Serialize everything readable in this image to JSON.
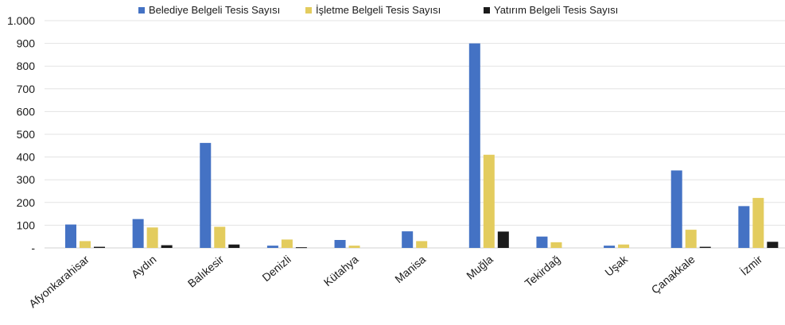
{
  "chart_data": {
    "type": "bar",
    "categories": [
      "Afyonkarahisar",
      "Aydın",
      "Balıkesir",
      "Denizli",
      "Kütahya",
      "Manisa",
      "Muğla",
      "Tekirdağ",
      "Uşak",
      "Çanakkale",
      "İzmir"
    ],
    "series": [
      {
        "name": "Belediye Belgeli Tesis Sayısı",
        "color": "#4472c4",
        "values": [
          103,
          127,
          462,
          10,
          35,
          73,
          900,
          50,
          10,
          341,
          184
        ]
      },
      {
        "name": "İşletme Belgeli Tesis Sayısı",
        "color": "#e3cc5e",
        "values": [
          30,
          90,
          93,
          37,
          10,
          30,
          410,
          25,
          15,
          80,
          220
        ]
      },
      {
        "name": "Yatırım Belgeli Tesis Sayısı",
        "color": "#1b1b1b",
        "values": [
          5,
          12,
          15,
          3,
          0,
          0,
          72,
          0,
          0,
          5,
          27
        ]
      }
    ],
    "ylim": [
      0,
      1000
    ],
    "yticks": [
      0,
      100,
      200,
      300,
      400,
      500,
      600,
      700,
      800,
      900,
      1000
    ],
    "ytick_labels": [
      "-",
      "100",
      "200",
      "300",
      "400",
      "500",
      "600",
      "700",
      "800",
      "900",
      "1.000"
    ],
    "grid": true,
    "legend_position": "top"
  }
}
